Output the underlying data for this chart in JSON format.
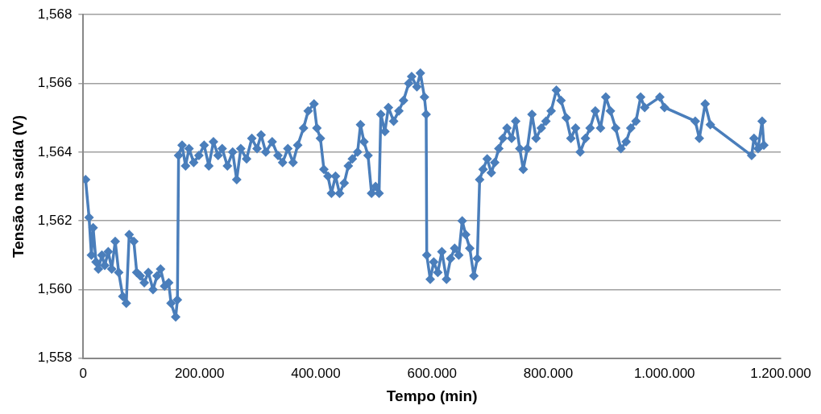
{
  "chart_data": {
    "type": "line",
    "xlabel": "Tempo (min)",
    "ylabel": "Tensão na saída (V)",
    "marker": "diamond",
    "grid": "y",
    "legend": false,
    "xlim": [
      0,
      1200000
    ],
    "xticks": [
      0,
      {
        "value": 200000,
        "label": "200.000"
      },
      {
        "value": 400000,
        "label": "400.000"
      },
      {
        "value": 600000,
        "label": "600.000"
      },
      {
        "value": 800000,
        "label": "800.000"
      },
      {
        "value": 1000000,
        "label": "1.000.000"
      },
      {
        "value": 1200000,
        "label": "1.200.000"
      }
    ],
    "ylim": [
      1.558,
      1.568
    ],
    "yticks": [
      {
        "value": 1.558,
        "label": "1,558"
      },
      {
        "value": 1.56,
        "label": "1,560"
      },
      {
        "value": 1.562,
        "label": "1,562"
      },
      {
        "value": 1.564,
        "label": "1,564"
      },
      {
        "value": 1.566,
        "label": "1,566"
      },
      {
        "value": 1.568,
        "label": "1,568"
      }
    ],
    "series": [
      {
        "color": "#4a7ebb",
        "x": [
          4000,
          10000,
          14000,
          17000,
          22000,
          26000,
          32000,
          37000,
          43000,
          49000,
          55000,
          61000,
          68000,
          74000,
          79000,
          87000,
          92000,
          98000,
          105000,
          112000,
          120000,
          127000,
          133000,
          140000,
          147000,
          151000,
          159000,
          162000,
          164000,
          170000,
          176000,
          182000,
          190000,
          199000,
          208000,
          216000,
          224000,
          232000,
          239000,
          248000,
          257000,
          264000,
          271000,
          281000,
          290000,
          299000,
          306000,
          314000,
          325000,
          335000,
          343000,
          352000,
          361000,
          369000,
          379000,
          387000,
          397000,
          402000,
          408000,
          414000,
          421000,
          427000,
          434000,
          441000,
          449000,
          456000,
          463000,
          472000,
          477000,
          483000,
          490000,
          496000,
          503000,
          509000,
          512000,
          519000,
          525000,
          534000,
          543000,
          551000,
          560000,
          565000,
          574000,
          580000,
          587000,
          590000,
          591000,
          597000,
          603000,
          610000,
          617000,
          625000,
          632000,
          639000,
          646000,
          652000,
          658000,
          665000,
          672000,
          678000,
          682000,
          688000,
          695000,
          702000,
          708000,
          715000,
          722000,
          729000,
          737000,
          744000,
          751000,
          757000,
          764000,
          772000,
          779000,
          788000,
          796000,
          805000,
          814000,
          822000,
          831000,
          839000,
          847000,
          855000,
          864000,
          872000,
          881000,
          890000,
          899000,
          907000,
          916000,
          925000,
          934000,
          942000,
          951000,
          959000,
          966000,
          992000,
          1000000,
          1053000,
          1060000,
          1070000,
          1079000,
          1150000,
          1154000,
          1161000,
          1168000,
          1171000
        ],
        "values": [
          1.5632,
          1.5621,
          1.561,
          1.5618,
          1.5608,
          1.5606,
          1.561,
          1.5607,
          1.5611,
          1.5606,
          1.5614,
          1.5605,
          1.5598,
          1.5596,
          1.5616,
          1.5614,
          1.5605,
          1.5604,
          1.5602,
          1.5605,
          1.56,
          1.5604,
          1.5606,
          1.5601,
          1.5602,
          1.5596,
          1.5592,
          1.5597,
          1.5639,
          1.5642,
          1.5636,
          1.5641,
          1.5637,
          1.5639,
          1.5642,
          1.5636,
          1.5643,
          1.5639,
          1.5641,
          1.5636,
          1.564,
          1.5632,
          1.5641,
          1.5638,
          1.5644,
          1.5641,
          1.5645,
          1.564,
          1.5643,
          1.5639,
          1.5637,
          1.5641,
          1.5637,
          1.5642,
          1.5647,
          1.5652,
          1.5654,
          1.5647,
          1.5644,
          1.5635,
          1.5633,
          1.5628,
          1.5633,
          1.5628,
          1.5631,
          1.5636,
          1.5638,
          1.564,
          1.5648,
          1.5643,
          1.5639,
          1.5628,
          1.563,
          1.5628,
          1.5651,
          1.5646,
          1.5653,
          1.5649,
          1.5652,
          1.5655,
          1.566,
          1.5662,
          1.5659,
          1.5663,
          1.5656,
          1.5651,
          1.561,
          1.5603,
          1.5608,
          1.5605,
          1.5611,
          1.5603,
          1.5609,
          1.5612,
          1.561,
          1.562,
          1.5616,
          1.5612,
          1.5604,
          1.5609,
          1.5632,
          1.5635,
          1.5638,
          1.5634,
          1.5637,
          1.5641,
          1.5644,
          1.5647,
          1.5644,
          1.5649,
          1.5641,
          1.5635,
          1.5641,
          1.5651,
          1.5644,
          1.5647,
          1.5649,
          1.5652,
          1.5658,
          1.5655,
          1.565,
          1.5644,
          1.5647,
          1.564,
          1.5644,
          1.5647,
          1.5652,
          1.5647,
          1.5656,
          1.5652,
          1.5647,
          1.5641,
          1.5643,
          1.5647,
          1.5649,
          1.5656,
          1.5653,
          1.5656,
          1.5653,
          1.5649,
          1.5644,
          1.5654,
          1.5648,
          1.5639,
          1.5644,
          1.5641,
          1.5649,
          1.5642
        ]
      }
    ]
  }
}
